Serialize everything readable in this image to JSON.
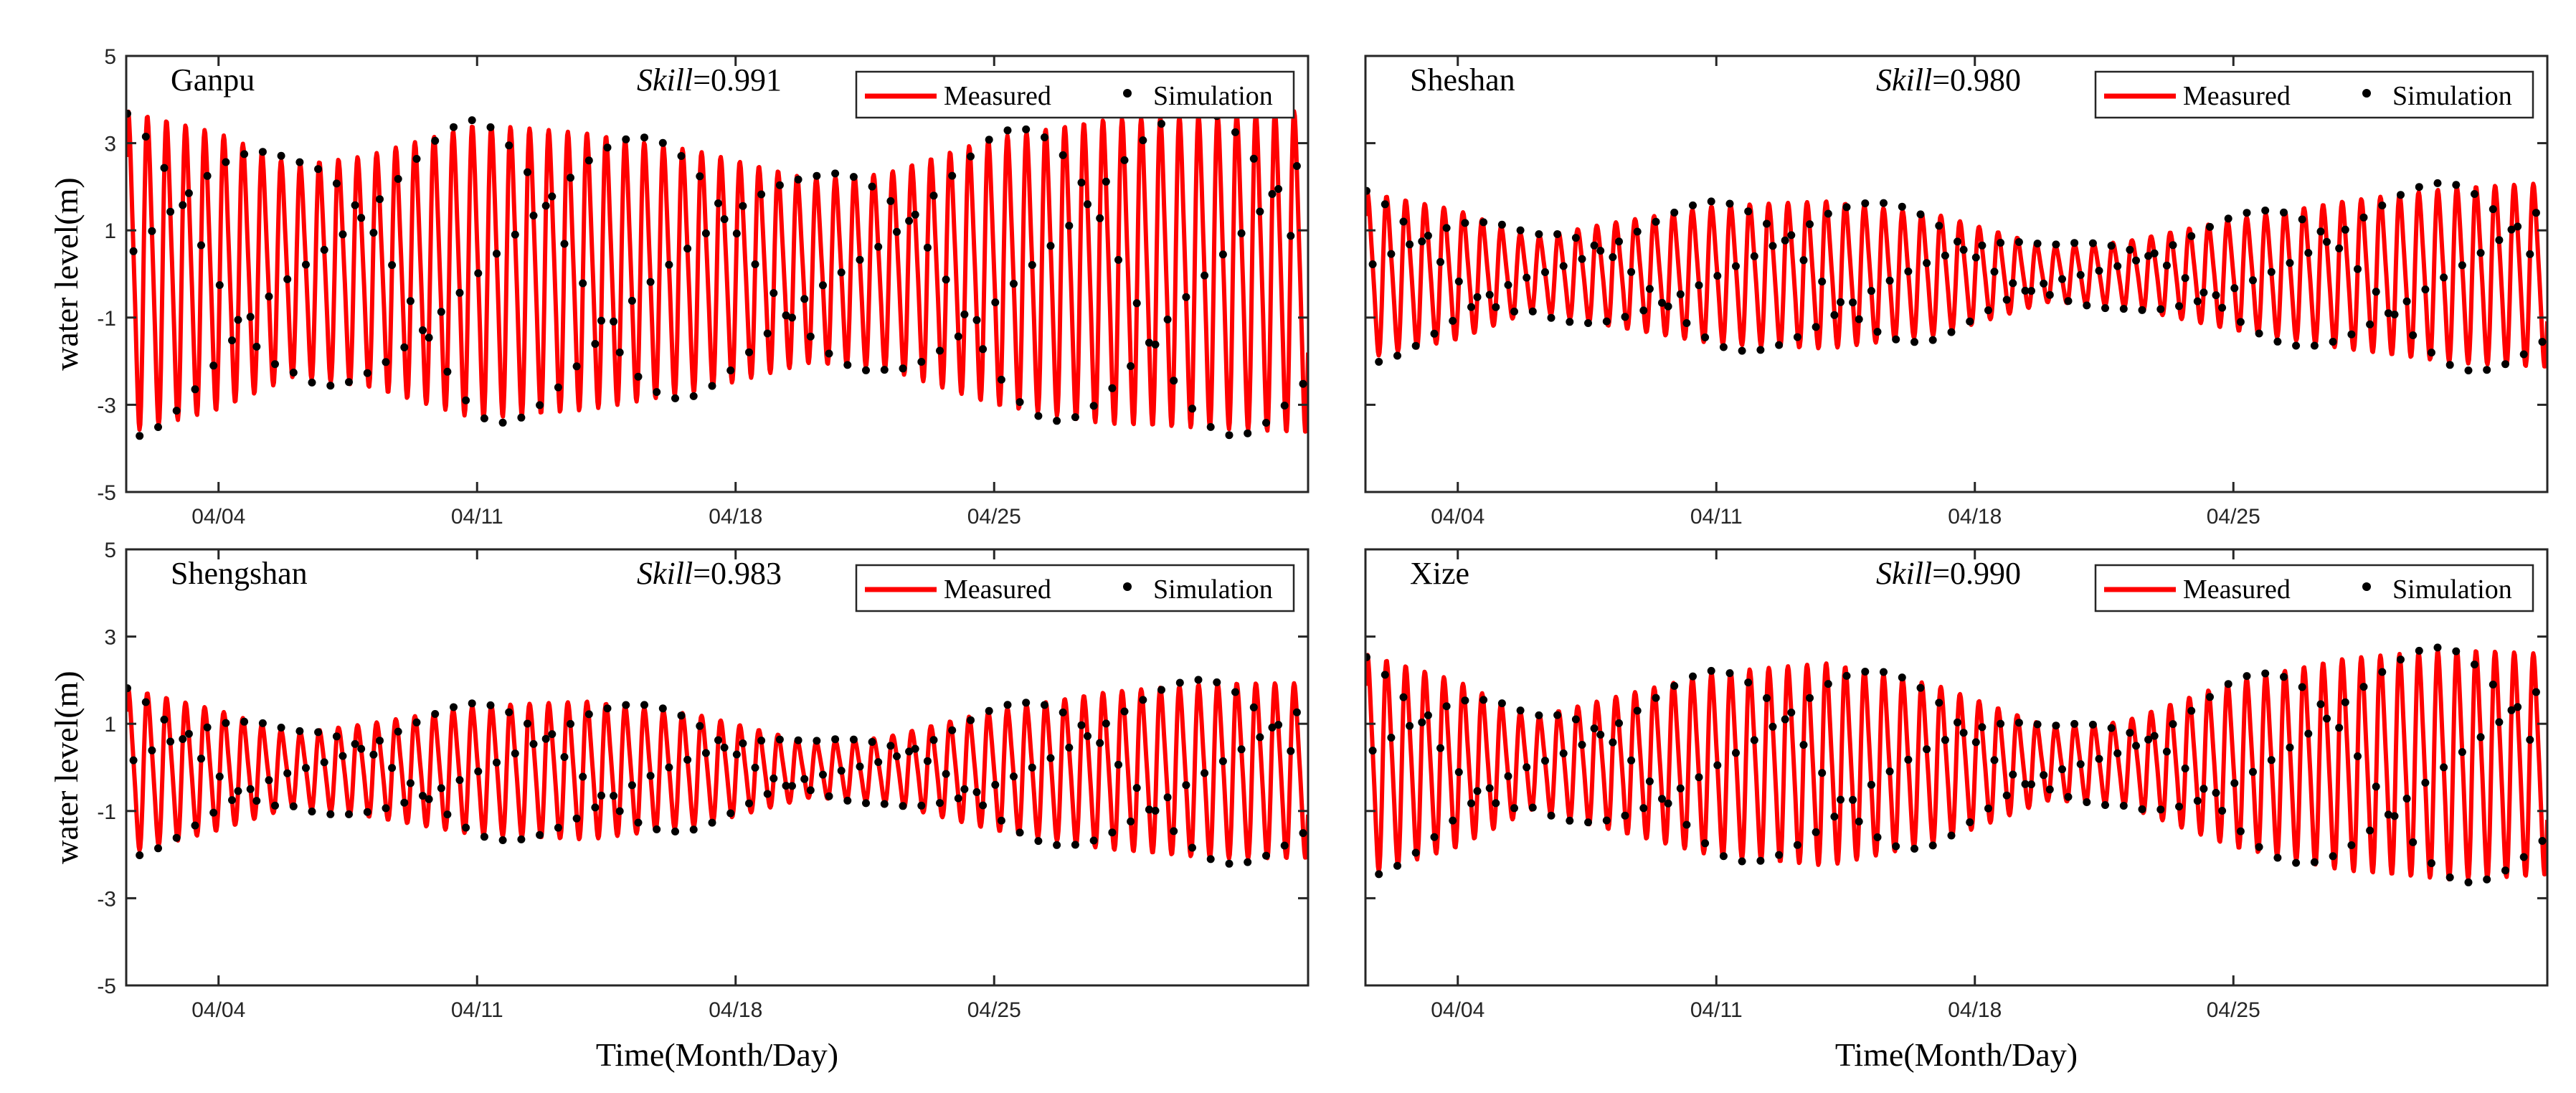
{
  "chart_data": [
    {
      "type": "line",
      "title": "Ganpu",
      "skill_label": "Skill",
      "skill_value": "=0.991",
      "xlabel": "",
      "ylabel": "water level(m)",
      "ylim": [
        -5,
        5
      ],
      "yticks": [
        5,
        3,
        1,
        -1,
        -3,
        -5
      ],
      "xlim_days": [
        1.5,
        33.5
      ],
      "xticks": [
        {
          "day": 4,
          "label": "04/04"
        },
        {
          "day": 11,
          "label": "04/11"
        },
        {
          "day": 18,
          "label": "04/18"
        },
        {
          "day": 25,
          "label": "04/25"
        }
      ],
      "legend": {
        "measured": "Measured",
        "simulation": "Simulation",
        "position": "top-right"
      },
      "tide": {
        "start_day": 1.5,
        "end_day": 33.5,
        "period_days": 0.5175,
        "amplitude_profile": [
          [
            1.5,
            3.5
          ],
          [
            4,
            3.0
          ],
          [
            6,
            2.3
          ],
          [
            8,
            2.5
          ],
          [
            11,
            3.2
          ],
          [
            14,
            3.0
          ],
          [
            17,
            2.6
          ],
          [
            20,
            2.0
          ],
          [
            22,
            2.1
          ],
          [
            25,
            2.9
          ],
          [
            28,
            3.3
          ],
          [
            31,
            3.4
          ],
          [
            33.5,
            3.5
          ]
        ],
        "mean_level": 0.1,
        "sim_bias": 1.04
      },
      "series": [
        {
          "name": "Measured",
          "color": "#ff0000"
        },
        {
          "name": "Simulation",
          "color": "#000000"
        }
      ]
    },
    {
      "type": "line",
      "title": "Sheshan",
      "skill_label": "Skill",
      "skill_value": "=0.980",
      "xlabel": "",
      "ylabel": "",
      "ylim": [
        -5,
        5
      ],
      "yticks": [],
      "xlim_days": [
        1.5,
        33.5
      ],
      "xticks": [
        {
          "day": 4,
          "label": "04/04"
        },
        {
          "day": 11,
          "label": "04/11"
        },
        {
          "day": 18,
          "label": "04/18"
        },
        {
          "day": 25,
          "label": "04/25"
        }
      ],
      "legend": {
        "measured": "Measured",
        "simulation": "Simulation",
        "position": "top-right"
      },
      "tide": {
        "start_day": 1.5,
        "end_day": 33.5,
        "period_days": 0.5175,
        "amplitude_profile": [
          [
            1.5,
            1.8
          ],
          [
            4,
            1.4
          ],
          [
            6,
            0.8
          ],
          [
            8,
            1.1
          ],
          [
            11,
            1.5
          ],
          [
            14,
            1.6
          ],
          [
            17,
            1.3
          ],
          [
            20,
            0.6
          ],
          [
            22,
            0.7
          ],
          [
            25,
            1.2
          ],
          [
            28,
            1.6
          ],
          [
            31,
            1.9
          ],
          [
            33.5,
            2.0
          ]
        ],
        "mean_level": 0.0,
        "sim_bias": 1.08
      },
      "series": [
        {
          "name": "Measured",
          "color": "#ff0000"
        },
        {
          "name": "Simulation",
          "color": "#000000"
        }
      ]
    },
    {
      "type": "line",
      "title": "Shengshan",
      "skill_label": "Skill",
      "skill_value": "=0.983",
      "xlabel": "Time(Month/Day)",
      "ylabel": "water level(m)",
      "ylim": [
        -5,
        5
      ],
      "yticks": [
        5,
        3,
        1,
        -1,
        -3,
        -5
      ],
      "xlim_days": [
        1.5,
        33.5
      ],
      "xticks": [
        {
          "day": 4,
          "label": "04/04"
        },
        {
          "day": 11,
          "label": "04/11"
        },
        {
          "day": 18,
          "label": "04/18"
        },
        {
          "day": 25,
          "label": "04/25"
        }
      ],
      "legend": {
        "measured": "Measured",
        "simulation": "Simulation",
        "position": "top-right"
      },
      "tide": {
        "start_day": 1.5,
        "end_day": 33.5,
        "period_days": 0.5175,
        "amplitude_profile": [
          [
            1.5,
            1.8
          ],
          [
            4,
            1.3
          ],
          [
            6,
            0.8
          ],
          [
            8,
            1.0
          ],
          [
            11,
            1.4
          ],
          [
            14,
            1.5
          ],
          [
            17,
            1.2
          ],
          [
            20,
            0.6
          ],
          [
            22,
            0.7
          ],
          [
            25,
            1.3
          ],
          [
            28,
            1.7
          ],
          [
            31,
            1.9
          ],
          [
            33.5,
            1.9
          ]
        ],
        "mean_level": -0.05,
        "sim_bias": 1.06
      },
      "series": [
        {
          "name": "Measured",
          "color": "#ff0000"
        },
        {
          "name": "Simulation",
          "color": "#000000"
        }
      ]
    },
    {
      "type": "line",
      "title": "Xize",
      "skill_label": "Skill",
      "skill_value": "=0.990",
      "xlabel": "Time(Month/Day)",
      "ylabel": "",
      "ylim": [
        -5,
        5
      ],
      "yticks": [],
      "xlim_days": [
        1.5,
        33.5
      ],
      "xticks": [
        {
          "day": 4,
          "label": "04/04"
        },
        {
          "day": 11,
          "label": "04/11"
        },
        {
          "day": 18,
          "label": "04/18"
        },
        {
          "day": 25,
          "label": "04/25"
        }
      ],
      "legend": {
        "measured": "Measured",
        "simulation": "Simulation",
        "position": "top-right"
      },
      "tide": {
        "start_day": 1.5,
        "end_day": 33.5,
        "period_days": 0.5175,
        "amplitude_profile": [
          [
            1.5,
            2.4
          ],
          [
            4,
            1.8
          ],
          [
            6,
            1.0
          ],
          [
            8,
            1.4
          ],
          [
            11,
            2.0
          ],
          [
            14,
            2.2
          ],
          [
            17,
            1.7
          ],
          [
            20,
            0.8
          ],
          [
            22,
            0.9
          ],
          [
            25,
            1.8
          ],
          [
            28,
            2.3
          ],
          [
            31,
            2.5
          ],
          [
            33.5,
            2.4
          ]
        ],
        "mean_level": 0.1,
        "sim_bias": 1.03
      },
      "series": [
        {
          "name": "Measured",
          "color": "#ff0000"
        },
        {
          "name": "Simulation",
          "color": "#000000"
        }
      ]
    }
  ]
}
